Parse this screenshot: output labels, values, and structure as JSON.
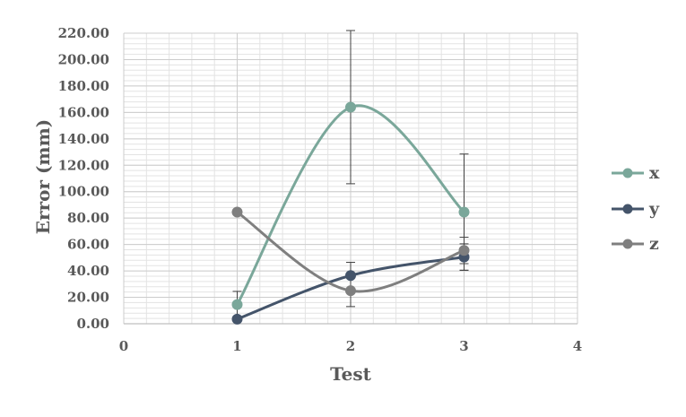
{
  "chart_data": {
    "type": "scatter",
    "title": "",
    "xlabel": "Test",
    "ylabel": "Error (mm)",
    "xlim": [
      0,
      4
    ],
    "ylim": [
      0,
      220
    ],
    "x_ticks": [
      "0",
      "1",
      "2",
      "3",
      "4"
    ],
    "y_ticks": [
      "0.00",
      "20.00",
      "40.00",
      "60.00",
      "80.00",
      "100.00",
      "120.00",
      "140.00",
      "160.00",
      "180.00",
      "200.00",
      "220.00"
    ],
    "grid": true,
    "smoothed_lines": true,
    "legend_position": "right",
    "series": [
      {
        "name": "x",
        "color": "#7aa79a",
        "x": [
          1,
          2,
          3
        ],
        "y": [
          14.5,
          164,
          84.5
        ],
        "error": [
          10,
          58,
          44
        ]
      },
      {
        "name": "y",
        "color": "#44546a",
        "x": [
          1,
          2,
          3
        ],
        "y": [
          3.5,
          36.5,
          50.5
        ],
        "error": [
          0,
          10,
          10
        ]
      },
      {
        "name": "z",
        "color": "#7f7f7f",
        "x": [
          1,
          2,
          3
        ],
        "y": [
          84.5,
          25,
          55.5
        ],
        "error": [
          0,
          12,
          10
        ]
      }
    ]
  }
}
